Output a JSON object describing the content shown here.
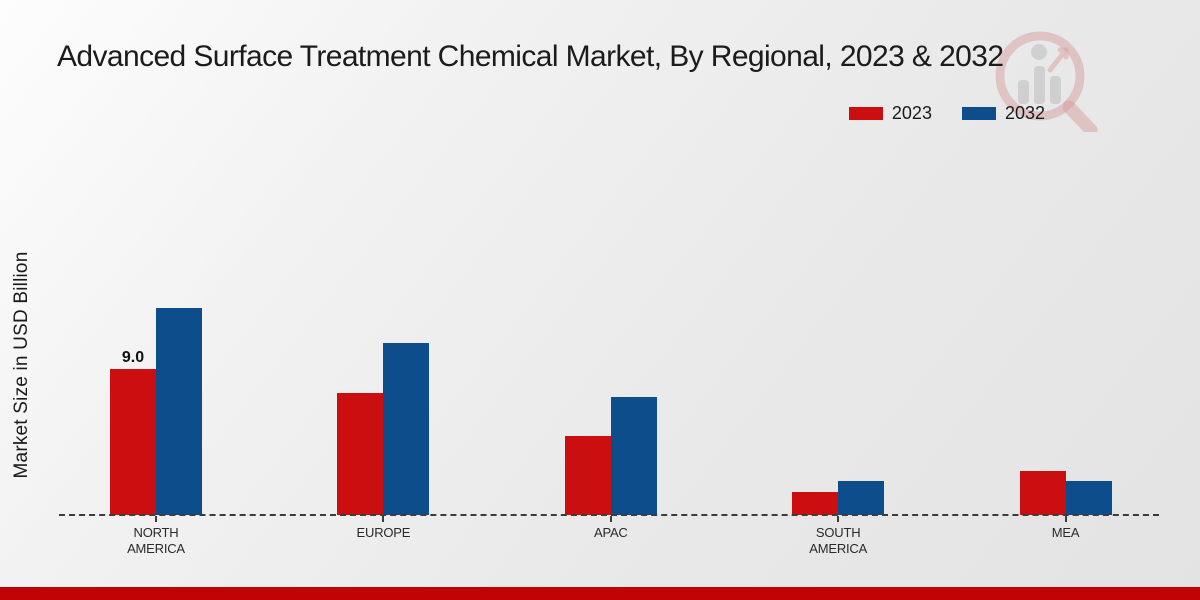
{
  "title": "Advanced Surface Treatment Chemical Market, By Regional, 2023 & 2032",
  "ylabel": "Market Size in USD Billion",
  "legend": [
    {
      "label": "2023",
      "color": "#cb0e10"
    },
    {
      "label": "2032",
      "color": "#0d4d8b"
    }
  ],
  "colors": {
    "bar_2023": "#cb0e10",
    "bar_2032": "#0d4d8b",
    "axis_dash": "#3c3c3c",
    "footer_strip": "#c00304",
    "text": "#1b1b1b"
  },
  "watermark_icon": "magnifier-bar-chart-logo",
  "chart_data": {
    "type": "bar",
    "categories": [
      "NORTH AMERICA",
      "EUROPE",
      "APAC",
      "SOUTH AMERICA",
      "MEA"
    ],
    "series": [
      {
        "name": "2023",
        "color": "#cb0e10",
        "values": [
          9.0,
          7.5,
          4.9,
          1.4,
          2.7
        ]
      },
      {
        "name": "2032",
        "color": "#0d4d8b",
        "values": [
          12.8,
          10.6,
          7.3,
          2.1,
          2.1
        ]
      }
    ],
    "annotations": [
      {
        "series": "2023",
        "category_index": 0,
        "text": "9.0"
      }
    ],
    "title": "Advanced Surface Treatment Chemical Market, By Regional, 2023 & 2032",
    "xlabel": "",
    "ylabel": "Market Size in USD Billion",
    "ylim": [
      0,
      13.5
    ],
    "grid": false,
    "legend_position": "top-right",
    "baseline_style": "dashed"
  }
}
